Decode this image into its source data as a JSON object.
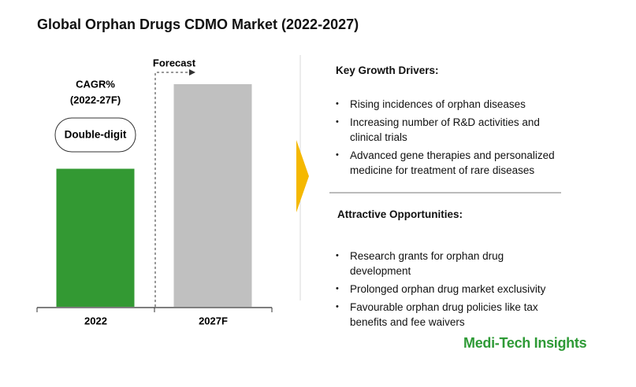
{
  "chart_data": {
    "type": "bar",
    "title": "Global Orphan Drugs CDMO Market (2022-2027)",
    "categories": [
      "2022",
      "2027F"
    ],
    "values": [
      62,
      100
    ],
    "colors": [
      "#339933",
      "#c0c0c0"
    ],
    "forecast_label": "Forecast",
    "cagr_label": [
      "CAGR%",
      "(2022-27F)"
    ],
    "cagr_value": "Double-digit"
  },
  "panels": [
    {
      "heading": "Key Growth Drivers:",
      "items": [
        "Rising incidences of orphan diseases",
        "Increasing number of R&D activities and clinical trials",
        "Advanced gene therapies and personalized medicine for treatment of rare diseases"
      ]
    },
    {
      "heading": "Attractive Opportunities:",
      "items": [
        "Research grants for orphan drug development",
        "Prolonged orphan drug market exclusivity",
        "Favourable orphan drug policies like tax benefits and fee waivers"
      ]
    }
  ],
  "brand": "Medi-Tech Insights"
}
